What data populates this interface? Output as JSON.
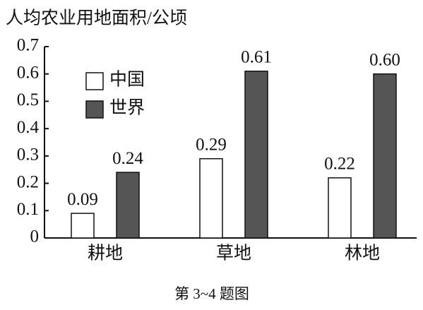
{
  "chart_data": {
    "type": "bar",
    "title": "人均农业用地面积/公顷",
    "caption": "第 3~4 题图",
    "categories": [
      "耕地",
      "草地",
      "林地"
    ],
    "series": [
      {
        "name": "中国",
        "color": "#ffffff",
        "values": [
          0.09,
          0.29,
          0.22
        ],
        "value_labels": [
          "0.09",
          "0.29",
          "0.22"
        ]
      },
      {
        "name": "世界",
        "color": "#555555",
        "values": [
          0.24,
          0.61,
          0.6
        ],
        "value_labels": [
          "0.24",
          "0.61",
          "0.60"
        ]
      }
    ],
    "ylim": [
      0,
      0.7
    ],
    "yticks": [
      0,
      0.1,
      0.2,
      0.3,
      0.4,
      0.5,
      0.6,
      0.7
    ],
    "legend": "upper-left",
    "grid": false
  }
}
